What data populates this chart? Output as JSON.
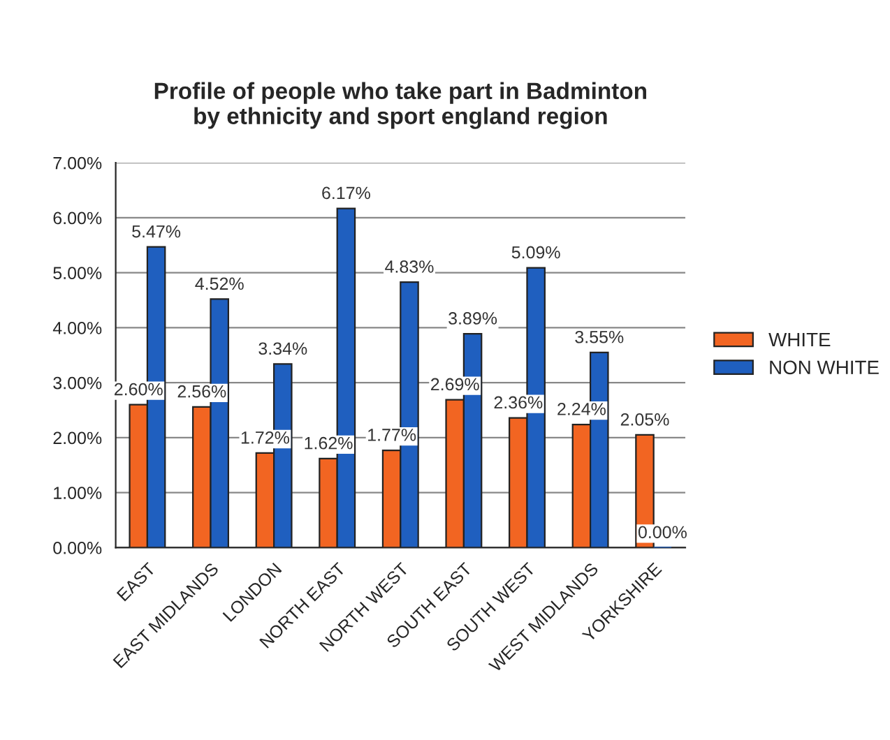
{
  "chart_data": {
    "type": "bar",
    "title": "Profile of people who take part in Badminton\nby ethnicity and sport england region",
    "categories": [
      "EAST",
      "EAST MIDLANDS",
      "LONDON",
      "NORTH EAST",
      "NORTH WEST",
      "SOUTH EAST",
      "SOUTH WEST",
      "WEST MIDLANDS",
      "YORKSHIRE"
    ],
    "series": [
      {
        "name": "WHITE",
        "color": "#f26522",
        "values": [
          2.6,
          2.56,
          1.72,
          1.62,
          1.77,
          2.69,
          2.36,
          2.24,
          2.05
        ],
        "value_labels": [
          "2.60%",
          "2.56%",
          "1.72%",
          "1.62%",
          "1.77%",
          "2.69%",
          "2.36%",
          "2.24%",
          "2.05%"
        ]
      },
      {
        "name": "NON WHITE",
        "color": "#1f5fbf",
        "values": [
          5.47,
          4.52,
          3.34,
          6.17,
          4.83,
          3.89,
          5.09,
          3.55,
          0.0
        ],
        "value_labels": [
          "5.47%",
          "4.52%",
          "3.34%",
          "6.17%",
          "4.83%",
          "3.89%",
          "5.09%",
          "3.55%",
          "0.00%"
        ]
      }
    ],
    "ylim": [
      0,
      7
    ],
    "yticks": [
      {
        "value": 0,
        "label": "0.00%"
      },
      {
        "value": 1,
        "label": "1.00%"
      },
      {
        "value": 2,
        "label": "2.00%"
      },
      {
        "value": 3,
        "label": "3.00%"
      },
      {
        "value": 4,
        "label": "4.00%"
      },
      {
        "value": 5,
        "label": "5.00%"
      },
      {
        "value": 6,
        "label": "6.00%"
      },
      {
        "value": 7,
        "label": "7.00%"
      }
    ],
    "grid": "y",
    "legend": "right"
  }
}
